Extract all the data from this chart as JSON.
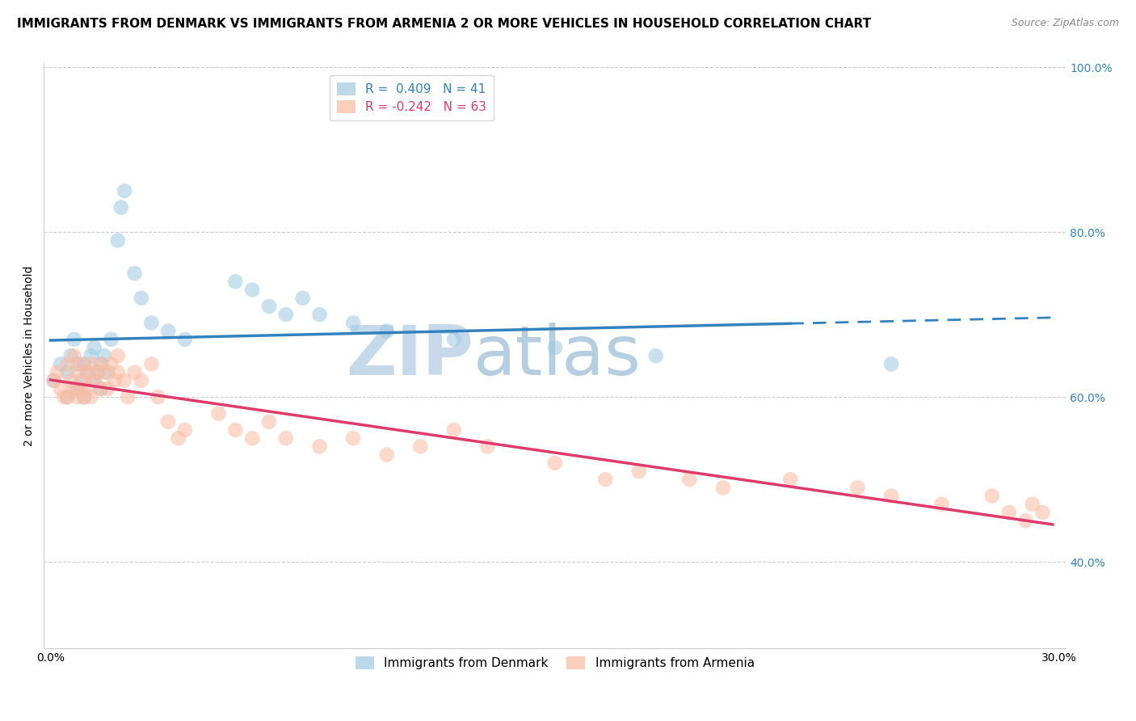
{
  "title": "IMMIGRANTS FROM DENMARK VS IMMIGRANTS FROM ARMENIA 2 OR MORE VEHICLES IN HOUSEHOLD CORRELATION CHART",
  "source": "Source: ZipAtlas.com",
  "ylabel": "2 or more Vehicles in Household",
  "xlim": [
    -0.002,
    0.302
  ],
  "ylim": [
    0.295,
    1.005
  ],
  "xtick_positions": [
    0.0,
    0.05,
    0.1,
    0.15,
    0.2,
    0.25,
    0.3
  ],
  "xticklabels": [
    "0.0%",
    "",
    "",
    "",
    "",
    "",
    "30.0%"
  ],
  "ytick_positions": [
    0.4,
    0.6,
    0.8,
    1.0
  ],
  "yticklabels_right": [
    "40.0%",
    "60.0%",
    "80.0%",
    "100.0%"
  ],
  "grid_lines": [
    0.4,
    0.6,
    0.8,
    1.0
  ],
  "denmark_R": 0.409,
  "denmark_N": 41,
  "armenia_R": -0.242,
  "armenia_N": 63,
  "denmark_color": "#9ecae1",
  "armenia_color": "#fcbba1",
  "denmark_line_color": "#3182bd",
  "armenia_line_color": "#de3a6b",
  "watermark_zip": "ZIP",
  "watermark_atlas": "atlas",
  "watermark_color_zip": "#c6d9ea",
  "watermark_color_atlas": "#b5cfe0",
  "denmark_x": [
    0.001,
    0.003,
    0.005,
    0.005,
    0.006,
    0.007,
    0.008,
    0.008,
    0.009,
    0.01,
    0.01,
    0.011,
    0.012,
    0.013,
    0.013,
    0.014,
    0.015,
    0.015,
    0.016,
    0.017,
    0.018,
    0.02,
    0.021,
    0.022,
    0.025,
    0.027,
    0.03,
    0.035,
    0.04,
    0.055,
    0.06,
    0.065,
    0.07,
    0.075,
    0.08,
    0.09,
    0.1,
    0.12,
    0.15,
    0.18,
    0.25
  ],
  "denmark_y": [
    0.62,
    0.64,
    0.6,
    0.63,
    0.65,
    0.67,
    0.61,
    0.64,
    0.62,
    0.6,
    0.64,
    0.63,
    0.65,
    0.62,
    0.66,
    0.63,
    0.61,
    0.64,
    0.65,
    0.63,
    0.67,
    0.79,
    0.83,
    0.85,
    0.75,
    0.72,
    0.69,
    0.68,
    0.67,
    0.74,
    0.73,
    0.71,
    0.7,
    0.72,
    0.7,
    0.69,
    0.68,
    0.67,
    0.66,
    0.65,
    0.64
  ],
  "armenia_x": [
    0.001,
    0.002,
    0.003,
    0.004,
    0.005,
    0.005,
    0.006,
    0.007,
    0.007,
    0.008,
    0.008,
    0.009,
    0.009,
    0.01,
    0.01,
    0.011,
    0.011,
    0.012,
    0.012,
    0.013,
    0.014,
    0.015,
    0.015,
    0.016,
    0.017,
    0.018,
    0.019,
    0.02,
    0.02,
    0.022,
    0.023,
    0.025,
    0.027,
    0.03,
    0.032,
    0.035,
    0.038,
    0.04,
    0.05,
    0.055,
    0.06,
    0.065,
    0.07,
    0.08,
    0.09,
    0.1,
    0.11,
    0.12,
    0.13,
    0.15,
    0.165,
    0.175,
    0.19,
    0.2,
    0.22,
    0.24,
    0.25,
    0.265,
    0.28,
    0.285,
    0.29,
    0.292,
    0.295
  ],
  "armenia_y": [
    0.62,
    0.63,
    0.61,
    0.6,
    0.64,
    0.6,
    0.62,
    0.65,
    0.61,
    0.63,
    0.6,
    0.64,
    0.61,
    0.62,
    0.6,
    0.63,
    0.61,
    0.64,
    0.6,
    0.62,
    0.63,
    0.61,
    0.64,
    0.63,
    0.61,
    0.64,
    0.62,
    0.63,
    0.65,
    0.62,
    0.6,
    0.63,
    0.62,
    0.64,
    0.6,
    0.57,
    0.55,
    0.56,
    0.58,
    0.56,
    0.55,
    0.57,
    0.55,
    0.54,
    0.55,
    0.53,
    0.54,
    0.56,
    0.54,
    0.52,
    0.5,
    0.51,
    0.5,
    0.49,
    0.5,
    0.49,
    0.48,
    0.47,
    0.48,
    0.46,
    0.45,
    0.47,
    0.46
  ],
  "title_fontsize": 11,
  "axis_label_fontsize": 10,
  "tick_fontsize": 10,
  "legend_fontsize": 11,
  "dot_size": 180
}
